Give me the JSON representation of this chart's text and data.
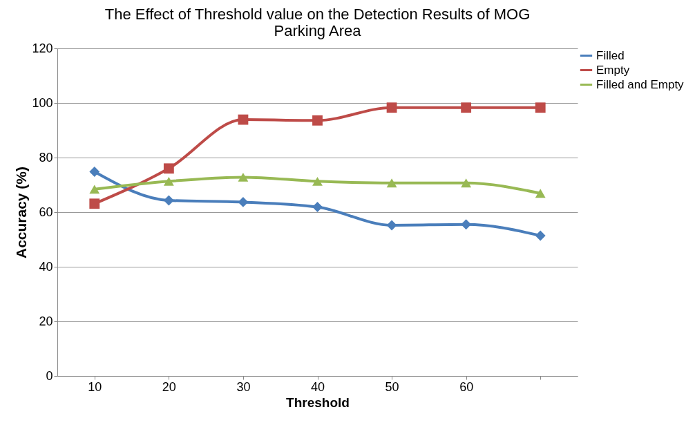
{
  "chart_data": {
    "type": "line",
    "title": "The Effect of Threshold value on the Detection Results of MOG Parking Area",
    "xlabel": "Threshold",
    "ylabel": "Accuracy (%)",
    "categories": [
      "10",
      "20",
      "30",
      "40",
      "50",
      "60",
      null
    ],
    "series": [
      {
        "name": "Filled",
        "color": "#4a7ebb",
        "marker": "diamond",
        "values": [
          74.8,
          64.3,
          63.7,
          61.9,
          55.2,
          55.5,
          51.4
        ]
      },
      {
        "name": "Empty",
        "color": "#be4b48",
        "marker": "square",
        "values": [
          63.1,
          76.0,
          93.9,
          93.6,
          98.3,
          98.3,
          98.3
        ]
      },
      {
        "name": "Filled and Empty",
        "color": "#98b954",
        "marker": "triangle",
        "values": [
          68.4,
          71.3,
          72.8,
          71.3,
          70.7,
          70.7,
          66.9
        ]
      }
    ],
    "ylim": [
      0,
      120
    ],
    "yticks": [
      0,
      20,
      40,
      60,
      80,
      100,
      120
    ],
    "grid": "y",
    "legend": "right",
    "line_style": "solid"
  }
}
